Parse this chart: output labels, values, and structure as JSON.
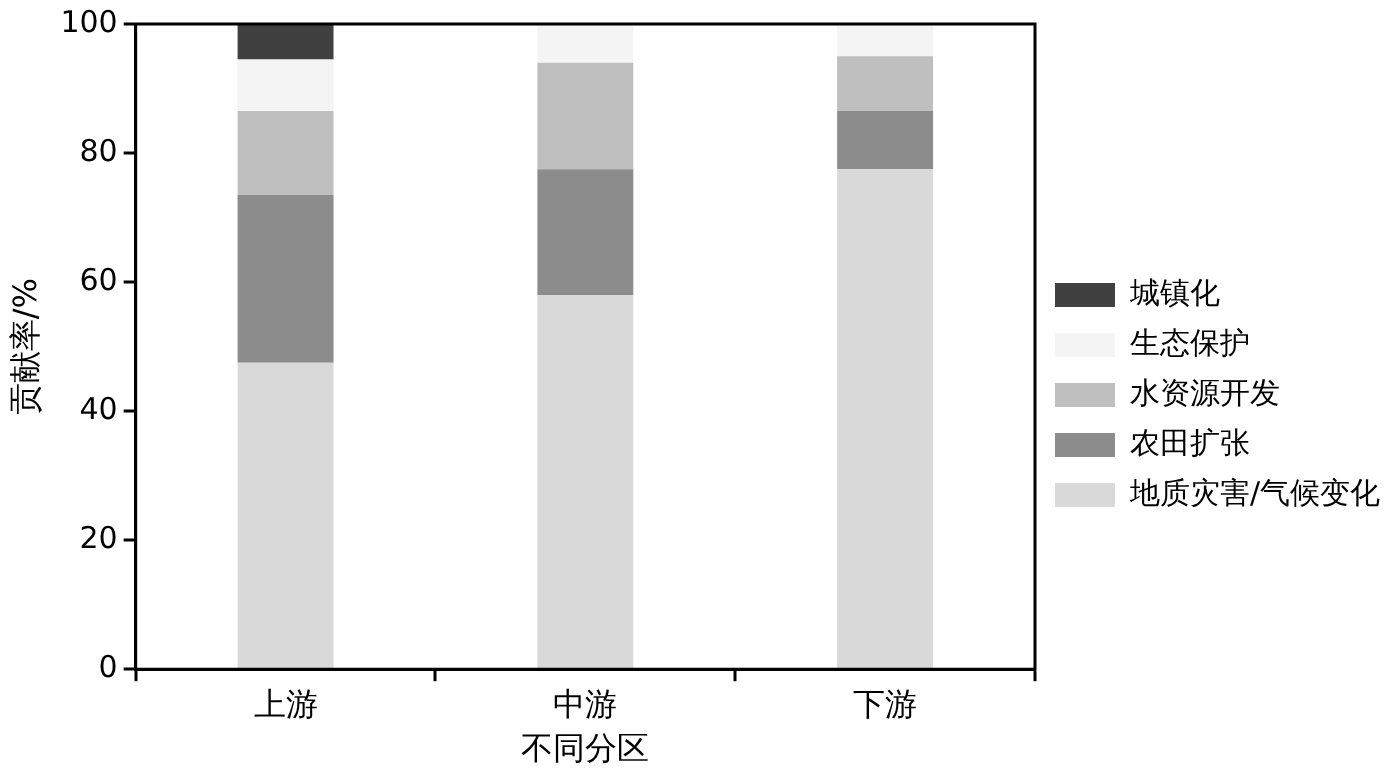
{
  "chart_data": {
    "type": "bar",
    "stacked": true,
    "xlabel": "不同分区",
    "ylabel": "贡献率/%",
    "categories": [
      "上游",
      "中游",
      "下游"
    ],
    "series": [
      {
        "name": "地质灾害/气候变化",
        "color": "#d9d9d9",
        "values": [
          47.5,
          58,
          77.5
        ]
      },
      {
        "name": "农田扩张",
        "color": "#8c8c8c",
        "values": [
          26,
          19.5,
          9
        ]
      },
      {
        "name": "水资源开发",
        "color": "#bfbfbf",
        "values": [
          13,
          16.5,
          8.5
        ]
      },
      {
        "name": "生态保护",
        "color": "#f4f4f4",
        "values": [
          8,
          6,
          5
        ]
      },
      {
        "name": "城镇化",
        "color": "#404040",
        "values": [
          5.5,
          0,
          0
        ]
      }
    ],
    "ylim": [
      0,
      100
    ],
    "yticks": [
      0,
      20,
      40,
      60,
      80,
      100
    ],
    "grid": false,
    "legend": "right"
  }
}
